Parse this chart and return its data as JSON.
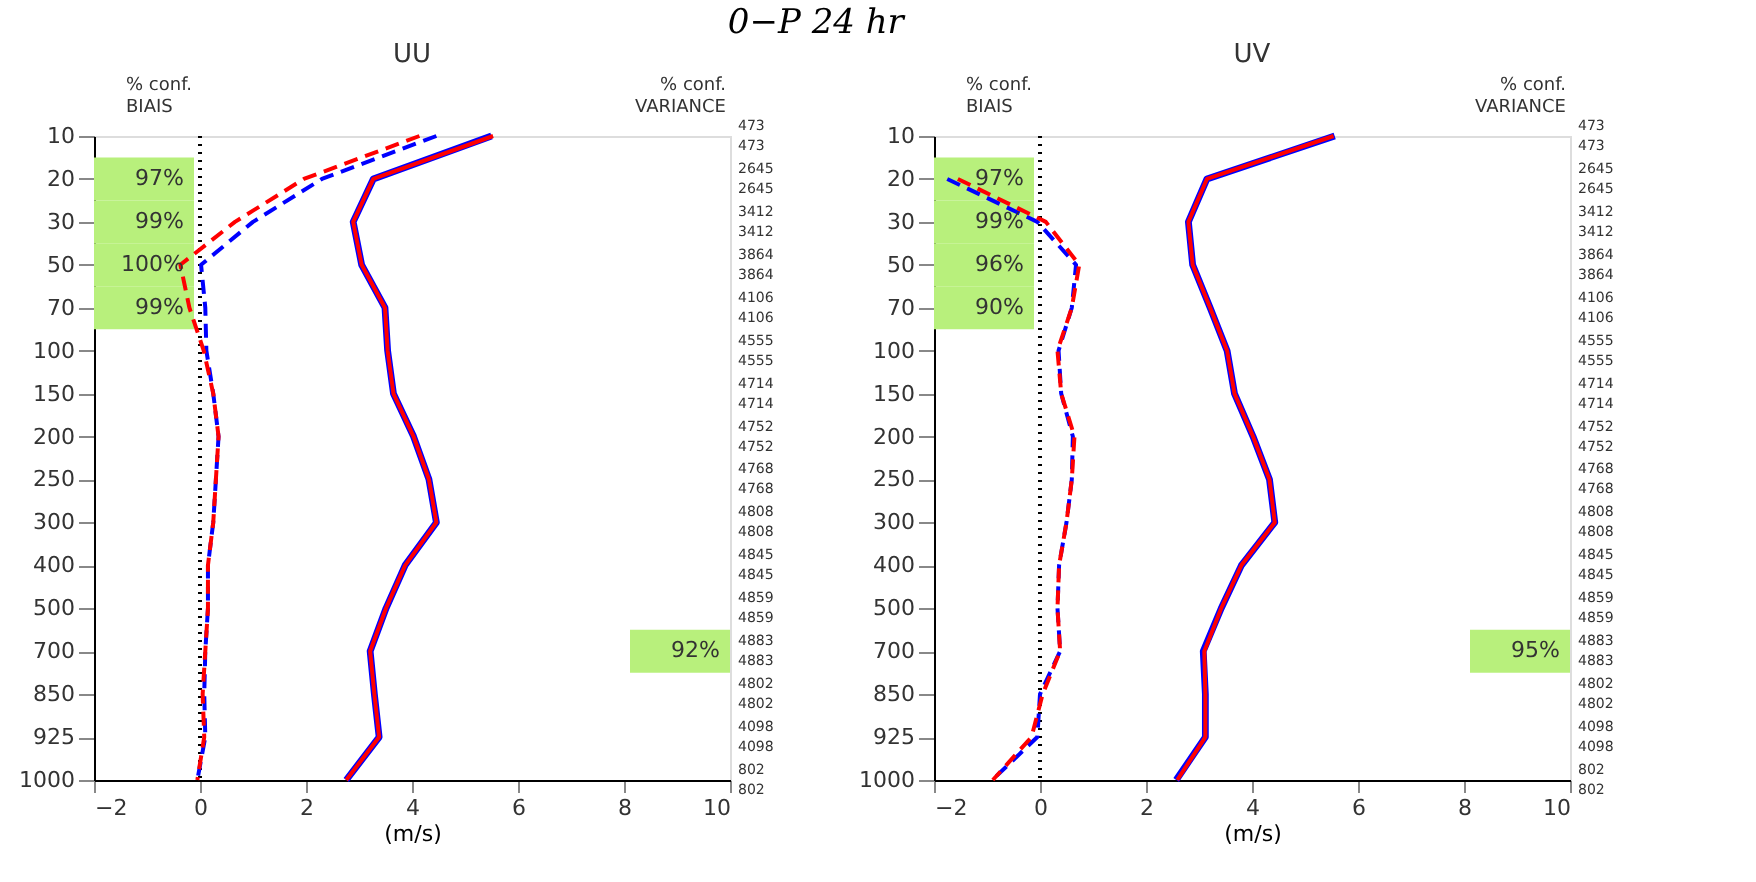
{
  "chart_data": [
    {
      "type": "line",
      "orientation": "horizontal",
      "title": "0−P 24 hr",
      "subtitle": "UU",
      "xlabel": "(m/s)",
      "categories": [
        "10",
        "20",
        "30",
        "50",
        "70",
        "100",
        "150",
        "200",
        "250",
        "300",
        "400",
        "500",
        "700",
        "850",
        "925",
        "1000"
      ],
      "y2_categories": [
        [
          "473",
          "473"
        ],
        [
          "2645",
          "2645"
        ],
        [
          "3412",
          "3412"
        ],
        [
          "3864",
          "3864"
        ],
        [
          "4106",
          "4106"
        ],
        [
          "4555",
          "4555"
        ],
        [
          "4714",
          "4714"
        ],
        [
          "4752",
          "4752"
        ],
        [
          "4768",
          "4768"
        ],
        [
          "4808",
          "4808"
        ],
        [
          "4845",
          "4845"
        ],
        [
          "4859",
          "4859"
        ],
        [
          "4883",
          "4883"
        ],
        [
          "4802",
          "4802"
        ],
        [
          "4098",
          "4098"
        ],
        [
          "802",
          "802"
        ]
      ],
      "xlim": [
        -2,
        10
      ],
      "xticks": [
        -2,
        0,
        2,
        4,
        6,
        8,
        10
      ],
      "grid": false,
      "marker": "none",
      "series": [
        {
          "color": "#0000ff",
          "line_style": "solid",
          "values": [
            5.5,
            3.27,
            2.89,
            3.05,
            3.49,
            3.54,
            3.65,
            4.03,
            4.32,
            4.46,
            3.87,
            3.51,
            3.21,
            3.29,
            3.38,
            2.76
          ]
        },
        {
          "color": "#ff0000",
          "line_style": "solid",
          "values": [
            5.53,
            3.27,
            2.89,
            3.05,
            3.49,
            3.54,
            3.65,
            4.03,
            4.32,
            4.46,
            3.87,
            3.51,
            3.21,
            3.29,
            3.38,
            2.76
          ]
        },
        {
          "color": "#0000ff",
          "line_style": "dashed",
          "values": [
            4.46,
            2.3,
            1.0,
            0.02,
            0.1,
            0.12,
            0.25,
            0.35,
            0.3,
            0.25,
            0.15,
            0.15,
            0.1,
            0.08,
            0.1,
            -0.05
          ]
        },
        {
          "color": "#ff0000",
          "line_style": "dashed",
          "values": [
            4.14,
            1.96,
            0.66,
            -0.37,
            -0.2,
            0.07,
            0.25,
            0.35,
            0.3,
            0.25,
            0.15,
            0.15,
            0.1,
            0.05,
            0.08,
            -0.05
          ]
        }
      ],
      "ref_lines": [
        {
          "axis": "x",
          "value": 0,
          "color": "#000000",
          "line_style": "dotted"
        }
      ],
      "annotations": [
        "% conf.",
        "BIAIS",
        "% conf.",
        "VARIANCE",
        "97%",
        "99%",
        "100%",
        "99%",
        "92%"
      ]
    },
    {
      "type": "line",
      "orientation": "horizontal",
      "subtitle": "UV",
      "xlabel": "(m/s)",
      "categories": [
        "10",
        "20",
        "30",
        "50",
        "70",
        "100",
        "150",
        "200",
        "250",
        "300",
        "400",
        "500",
        "700",
        "850",
        "925",
        "1000"
      ],
      "y2_categories": [
        [
          "473",
          "473"
        ],
        [
          "2645",
          "2645"
        ],
        [
          "3412",
          "3412"
        ],
        [
          "3864",
          "3864"
        ],
        [
          "4106",
          "4106"
        ],
        [
          "4555",
          "4555"
        ],
        [
          "4714",
          "4714"
        ],
        [
          "4752",
          "4752"
        ],
        [
          "4768",
          "4768"
        ],
        [
          "4808",
          "4808"
        ],
        [
          "4845",
          "4845"
        ],
        [
          "4859",
          "4859"
        ],
        [
          "4883",
          "4883"
        ],
        [
          "4802",
          "4802"
        ],
        [
          "4098",
          "4098"
        ],
        [
          "802",
          "802"
        ]
      ],
      "xlim": [
        -2,
        10
      ],
      "xticks": [
        -2,
        0,
        2,
        4,
        6,
        8,
        10
      ],
      "grid": false,
      "marker": "none",
      "series": [
        {
          "color": "#0000ff",
          "line_style": "solid",
          "values": [
            5.56,
            3.15,
            2.8,
            2.88,
            3.21,
            3.53,
            3.67,
            4.02,
            4.33,
            4.43,
            3.8,
            3.42,
            3.08,
            3.12,
            3.12,
            2.57
          ]
        },
        {
          "color": "#ff0000",
          "line_style": "solid",
          "values": [
            5.54,
            3.15,
            2.8,
            2.88,
            3.21,
            3.53,
            3.67,
            4.02,
            4.33,
            4.43,
            3.8,
            3.42,
            3.1,
            3.12,
            3.12,
            2.59
          ]
        },
        {
          "color": "#0000ff",
          "line_style": "dashed",
          "values": [
            null,
            -1.75,
            -0.05,
            0.68,
            0.6,
            0.35,
            0.4,
            0.62,
            0.6,
            0.5,
            0.36,
            0.33,
            0.38,
            0.0,
            -0.05,
            -0.9
          ]
        },
        {
          "color": "#ff0000",
          "line_style": "dashed",
          "values": [
            null,
            -1.55,
            0.11,
            0.74,
            0.6,
            0.33,
            0.4,
            0.65,
            0.6,
            0.5,
            0.36,
            0.33,
            0.38,
            0.05,
            -0.16,
            -0.89
          ]
        }
      ],
      "ref_lines": [
        {
          "axis": "x",
          "value": 0,
          "color": "#000000",
          "line_style": "dotted"
        }
      ],
      "annotations": [
        "% conf.",
        "BIAIS",
        "% conf.",
        "VARIANCE",
        "97%",
        "99%",
        "96%",
        "90%",
        "95%"
      ]
    }
  ]
}
